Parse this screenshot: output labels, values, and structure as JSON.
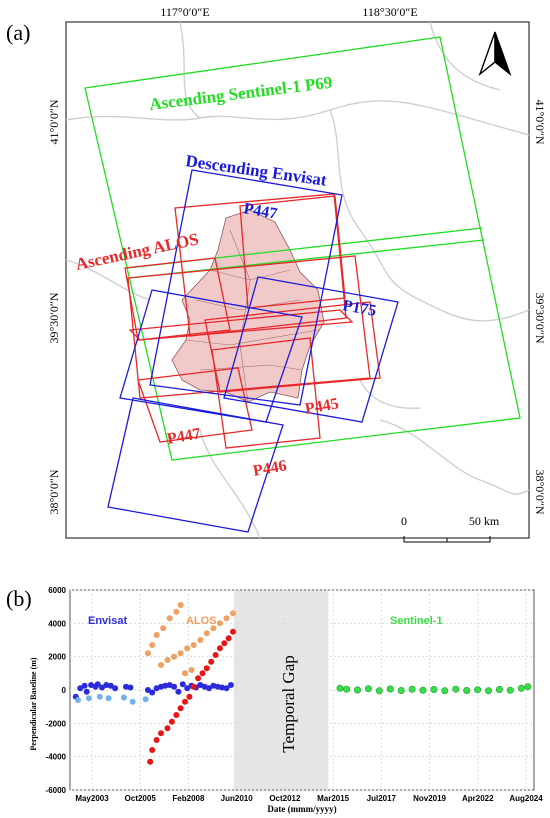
{
  "panel_a": {
    "label": "(a)",
    "lon_top": [
      "117°0′0″E",
      "118°30′0″E"
    ],
    "lat_left": [
      "41°0′0″N",
      "39°30′0″N",
      "38°0′0″N"
    ],
    "lat_right": [
      "41°0′0″N",
      "39°30′0″N",
      "38°0′0″N"
    ],
    "labels": {
      "sentinel": "Ascending Sentinel-1 P69",
      "envisat": "Descending Envisat",
      "alos": "Ascending ALOS",
      "p447_top": "P447",
      "p175": "P175",
      "p445": "P445",
      "p447_bottom": "P447",
      "p446": "P446"
    },
    "scalebar": {
      "start": "0",
      "end": "50 km"
    },
    "colors": {
      "sentinel": "#22dd22",
      "envisat": "#1a1adc",
      "alos": "#e8282a",
      "study_area": "#f2c9c9"
    }
  },
  "panel_b": {
    "label": "(b)",
    "legend": {
      "envisat": "Envisat",
      "alos": "ALOS",
      "sentinel": "Sentinel-1"
    },
    "gap_label": "Temporal Gap",
    "colors": {
      "envisat": "#2b2bdb",
      "envisat_light": "#6fb3ee",
      "alos": "#e81515",
      "alos_light": "#f0a060",
      "sentinel": "#3bdc4a",
      "gap": "#e6e6e6"
    }
  },
  "chart_data": {
    "type": "scatter",
    "xlabel": "Date (mmm/yyyy)",
    "ylabel": "Perpendicular Baseline (m)",
    "ylim": [
      -6000,
      6000
    ],
    "yticks": [
      -6000,
      -4000,
      -2000,
      0,
      2000,
      4000,
      6000
    ],
    "xticks": [
      "May2003",
      "Oct2005",
      "Feb2008",
      "Jun2010",
      "Oct2012",
      "Mar2015",
      "Jul2017",
      "Nov2019",
      "Apr2022",
      "Aug2024"
    ],
    "xlim": [
      "2003-05",
      "2024-08"
    ],
    "temporal_gap": [
      "2010-11",
      "2015-03"
    ],
    "series": [
      {
        "name": "Envisat",
        "points": [
          [
            2003.6,
            -400
          ],
          [
            2003.8,
            100
          ],
          [
            2004.0,
            250
          ],
          [
            2004.1,
            -100
          ],
          [
            2004.3,
            300
          ],
          [
            2004.5,
            200
          ],
          [
            2004.6,
            350
          ],
          [
            2004.8,
            150
          ],
          [
            2005.0,
            300
          ],
          [
            2005.2,
            250
          ],
          [
            2005.4,
            100
          ],
          [
            2005.9,
            200
          ],
          [
            2006.1,
            150
          ],
          [
            2006.9,
            0
          ],
          [
            2007.1,
            -150
          ],
          [
            2007.3,
            100
          ],
          [
            2007.5,
            200
          ],
          [
            2007.7,
            250
          ],
          [
            2007.9,
            300
          ],
          [
            2008.1,
            200
          ],
          [
            2008.3,
            -100
          ],
          [
            2008.5,
            350
          ],
          [
            2008.7,
            100
          ],
          [
            2008.9,
            250
          ],
          [
            2009.1,
            150
          ],
          [
            2009.3,
            300
          ],
          [
            2009.5,
            200
          ],
          [
            2009.7,
            100
          ],
          [
            2009.9,
            250
          ],
          [
            2010.1,
            200
          ],
          [
            2010.3,
            150
          ],
          [
            2010.5,
            100
          ],
          [
            2010.7,
            300
          ]
        ]
      },
      {
        "name": "Envisat",
        "points": [
          [
            2003.7,
            -600
          ],
          [
            2004.2,
            -500
          ],
          [
            2004.7,
            -400
          ],
          [
            2005.1,
            -500
          ],
          [
            2005.8,
            -450
          ],
          [
            2006.2,
            -700
          ],
          [
            2006.8,
            -550
          ]
        ]
      },
      {
        "name": "ALOS",
        "points": [
          [
            2007.0,
            -4300
          ],
          [
            2007.1,
            -3600
          ],
          [
            2007.3,
            -3000
          ],
          [
            2007.5,
            -2600
          ],
          [
            2007.8,
            -2300
          ],
          [
            2008.0,
            -1900
          ],
          [
            2008.2,
            -1500
          ],
          [
            2008.4,
            -1100
          ],
          [
            2008.6,
            -700
          ],
          [
            2008.8,
            -400
          ],
          [
            2009.0,
            200
          ],
          [
            2009.2,
            700
          ],
          [
            2009.4,
            1000
          ],
          [
            2009.6,
            1300
          ],
          [
            2009.8,
            1700
          ],
          [
            2010.0,
            2100
          ],
          [
            2010.2,
            2500
          ],
          [
            2010.4,
            2800
          ],
          [
            2010.6,
            3100
          ],
          [
            2010.8,
            3500
          ]
        ]
      },
      {
        "name": "ALOS",
        "points": [
          [
            2006.9,
            2200
          ],
          [
            2007.1,
            2700
          ],
          [
            2007.3,
            3300
          ],
          [
            2007.6,
            3700
          ],
          [
            2007.9,
            4300
          ],
          [
            2008.2,
            4700
          ],
          [
            2008.4,
            5100
          ],
          [
            2007.5,
            1500
          ],
          [
            2007.8,
            1800
          ],
          [
            2008.1,
            2000
          ],
          [
            2008.4,
            2200
          ],
          [
            2008.7,
            2500
          ],
          [
            2009.0,
            2700
          ],
          [
            2009.3,
            3000
          ],
          [
            2009.6,
            3400
          ],
          [
            2009.9,
            3700
          ],
          [
            2010.2,
            4000
          ],
          [
            2010.5,
            4300
          ],
          [
            2010.8,
            4600
          ],
          [
            2008.6,
            1000
          ],
          [
            2008.9,
            1200
          ]
        ]
      },
      {
        "name": "Sentinel-1",
        "points": [
          [
            2015.7,
            100
          ],
          [
            2016.0,
            50
          ],
          [
            2016.5,
            0
          ],
          [
            2017.0,
            80
          ],
          [
            2017.5,
            -50
          ],
          [
            2018.0,
            60
          ],
          [
            2018.5,
            -30
          ],
          [
            2019.0,
            40
          ],
          [
            2019.5,
            -20
          ],
          [
            2020.0,
            30
          ],
          [
            2020.5,
            -40
          ],
          [
            2021.0,
            50
          ],
          [
            2021.5,
            -30
          ],
          [
            2022.0,
            20
          ],
          [
            2022.5,
            -40
          ],
          [
            2023.0,
            30
          ],
          [
            2023.5,
            -20
          ],
          [
            2024.0,
            100
          ],
          [
            2024.3,
            200
          ]
        ]
      }
    ]
  }
}
